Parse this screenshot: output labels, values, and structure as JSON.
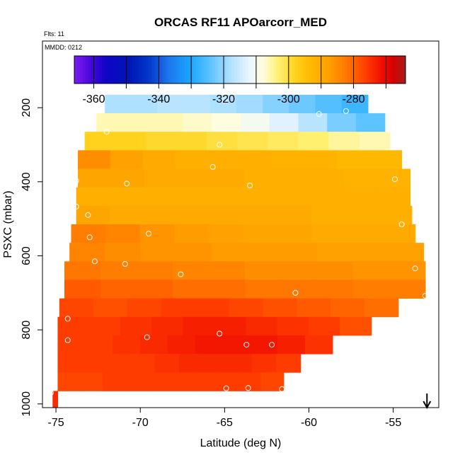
{
  "chart_data": {
    "type": "heatmap",
    "title": "ORCAS RF11 APOarcorr_MED",
    "notes": {
      "flights": "Flts: 11",
      "mmdd": "MMDD: 0212"
    },
    "xlabel": "Latitude (deg N)",
    "ylabel": "PSXC (mbar)",
    "xlim": [
      -75.8,
      -52.3
    ],
    "ylim": [
      1010,
      20
    ],
    "y_reversed": true,
    "x_ticks": [
      -75,
      -70,
      -65,
      -60,
      -55
    ],
    "x_tick_labels": [
      "-75",
      "-70",
      "-65",
      "-60",
      "-55"
    ],
    "y_ticks": [
      200,
      400,
      600,
      800,
      1000
    ],
    "y_tick_labels": [
      "200",
      "400",
      "600",
      "800",
      "1000"
    ],
    "colorbar": {
      "range": [
        -366,
        -264
      ],
      "boundaries": [
        -360,
        -350,
        -340,
        -330,
        -320,
        -310,
        -300,
        -290,
        -280,
        -270
      ],
      "tick_values": [
        -360,
        -340,
        -320,
        -300,
        -280
      ],
      "tick_labels": [
        "-360",
        "-340",
        "-320",
        "-300",
        "-280"
      ],
      "stops": [
        {
          "v": -366,
          "color": "#7a1ff0"
        },
        {
          "v": -361,
          "color": "#4a06dc"
        },
        {
          "v": -356,
          "color": "#0c05c4"
        },
        {
          "v": -349,
          "color": "#0016b4"
        },
        {
          "v": -343,
          "color": "#0338c8"
        },
        {
          "v": -337,
          "color": "#1e76ee"
        },
        {
          "v": -330,
          "color": "#1aa8ff"
        },
        {
          "v": -324,
          "color": "#5ec4ff"
        },
        {
          "v": -318,
          "color": "#aee0ff"
        },
        {
          "v": -312,
          "color": "#eaf6ff"
        },
        {
          "v": -308,
          "color": "#fffde0"
        },
        {
          "v": -303,
          "color": "#fff070"
        },
        {
          "v": -298,
          "color": "#ffd21e"
        },
        {
          "v": -293,
          "color": "#ffb800"
        },
        {
          "v": -287,
          "color": "#ff9c00"
        },
        {
          "v": -281,
          "color": "#ff6e00"
        },
        {
          "v": -276,
          "color": "#ff3c00"
        },
        {
          "v": -271,
          "color": "#f00c00"
        },
        {
          "v": -268,
          "color": "#d80000"
        },
        {
          "v": -264,
          "color": "#a41e1e"
        }
      ]
    },
    "rows": [
      {
        "p": [
          165,
          215
        ],
        "lat": [
          -72.1,
          -56.5
        ],
        "vals": [
          -318,
          -318,
          -317,
          -317,
          -318,
          -319,
          -321,
          -323,
          -325,
          -327
        ]
      },
      {
        "p": [
          215,
          265
        ],
        "lat": [
          -72.6,
          -55.5
        ],
        "vals": [
          -306,
          -306,
          -306,
          -307,
          -308,
          -310,
          -313,
          -317,
          -322,
          -324
        ]
      },
      {
        "p": [
          265,
          315
        ],
        "lat": [
          -73.3,
          -55.2
        ],
        "vals": [
          -298,
          -298,
          -299,
          -299,
          -300,
          -301,
          -302,
          -303,
          -305,
          -306
        ]
      },
      {
        "p": [
          315,
          365
        ],
        "lat": [
          -73.7,
          -54.5
        ],
        "vals": [
          -285,
          -288,
          -290,
          -291,
          -291,
          -291,
          -292,
          -292,
          -293,
          -293
        ]
      },
      {
        "p": [
          365,
          415
        ],
        "lat": [
          -73.7,
          -54.0
        ],
        "vals": [
          -289,
          -289,
          -290,
          -290,
          -290,
          -291,
          -291,
          -291,
          -292,
          -292
        ]
      },
      {
        "p": [
          415,
          465
        ],
        "lat": [
          -73.8,
          -54.0
        ],
        "vals": [
          -291,
          -291,
          -291,
          -291,
          -291,
          -291,
          -291,
          -291,
          -291,
          -291
        ]
      },
      {
        "p": [
          465,
          515
        ],
        "lat": [
          -73.8,
          -53.9
        ],
        "vals": [
          -289,
          -290,
          -290,
          -290,
          -290,
          -290,
          -290,
          -291,
          -291,
          -291
        ]
      },
      {
        "p": [
          515,
          565
        ],
        "lat": [
          -74.1,
          -53.7
        ],
        "vals": [
          -283,
          -284,
          -286,
          -287,
          -288,
          -289,
          -289,
          -290,
          -290,
          -290
        ]
      },
      {
        "p": [
          565,
          615
        ],
        "lat": [
          -74.2,
          -53.2
        ],
        "vals": [
          -284,
          -285,
          -286,
          -286,
          -287,
          -287,
          -287,
          -288,
          -288,
          -288
        ]
      },
      {
        "p": [
          615,
          665
        ],
        "lat": [
          -74.5,
          -53.1
        ],
        "vals": [
          -282,
          -283,
          -283,
          -284,
          -284,
          -285,
          -285,
          -285,
          -286,
          -286
        ]
      },
      {
        "p": [
          665,
          715
        ],
        "lat": [
          -74.5,
          -53.1
        ],
        "vals": [
          -279,
          -280,
          -280,
          -281,
          -281,
          -282,
          -282,
          -282,
          -283,
          -283
        ]
      },
      {
        "p": [
          715,
          765
        ],
        "lat": [
          -74.8,
          -54.7
        ],
        "vals": [
          -277,
          -278,
          -277,
          -276,
          -276,
          -277,
          -278,
          -279,
          -280,
          -281
        ]
      },
      {
        "p": [
          765,
          815
        ],
        "lat": [
          -74.9,
          -56.3
        ],
        "vals": [
          -276,
          -276,
          -275,
          -274,
          -273,
          -273,
          -274,
          -275,
          -276,
          -278
        ]
      },
      {
        "p": [
          815,
          865
        ],
        "lat": [
          -74.9,
          -58.6
        ],
        "vals": [
          -276,
          -276,
          -275,
          -274,
          -273,
          -272,
          -272,
          -272,
          -273,
          -275
        ]
      },
      {
        "p": [
          865,
          915
        ],
        "lat": [
          -74.9,
          -60.5
        ],
        "vals": [
          -276,
          -276,
          -276,
          -276,
          -275,
          -274,
          -274,
          -274,
          -275,
          -276
        ]
      },
      {
        "p": [
          915,
          965
        ],
        "lat": [
          -74.9,
          -61.5
        ],
        "vals": [
          -277,
          -277,
          -276,
          -276,
          -276,
          -276,
          -276,
          -276,
          -276,
          -277
        ]
      },
      {
        "p": [
          965,
          1010
        ],
        "lat": [
          -75.2,
          -74.9
        ],
        "vals": [
          -274
        ]
      }
    ],
    "points": [
      [
        -65.0,
        180
      ],
      [
        -57.8,
        209
      ],
      [
        -59.4,
        217
      ],
      [
        -72.0,
        265
      ],
      [
        -65.3,
        300
      ],
      [
        -65.7,
        360
      ],
      [
        -73.8,
        397
      ],
      [
        -70.8,
        405
      ],
      [
        -63.5,
        410
      ],
      [
        -54.9,
        393
      ],
      [
        -73.8,
        467
      ],
      [
        -73.0,
        550
      ],
      [
        -54.5,
        515
      ],
      [
        -73.1,
        490
      ],
      [
        -69.5,
        540
      ],
      [
        -72.7,
        615
      ],
      [
        -70.9,
        622
      ],
      [
        -67.6,
        650
      ],
      [
        -53.7,
        634
      ],
      [
        -74.3,
        770
      ],
      [
        -69.6,
        820
      ],
      [
        -65.3,
        810
      ],
      [
        -63.7,
        840
      ],
      [
        -62.2,
        840
      ],
      [
        -60.8,
        700
      ],
      [
        -53.1,
        708
      ],
      [
        -74.3,
        828
      ],
      [
        -64.9,
        958
      ],
      [
        -63.6,
        957
      ],
      [
        -61.6,
        960
      ],
      [
        -61.2,
        960
      ],
      [
        -60.9,
        960
      ],
      [
        -75.3,
        970
      ]
    ],
    "arrow_lat": -53.0
  }
}
